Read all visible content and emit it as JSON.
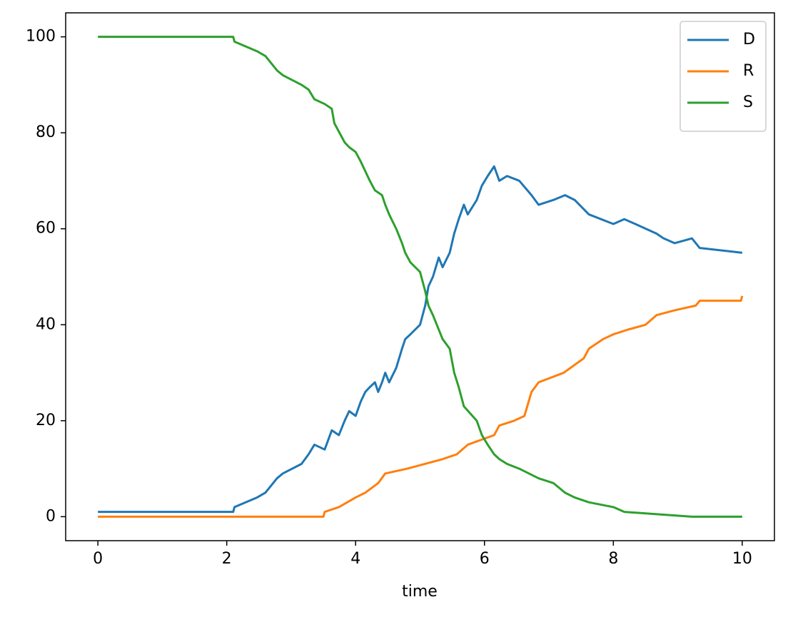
{
  "chart_data": {
    "type": "line",
    "xlabel": "time",
    "xlim": [
      -0.5,
      10.5
    ],
    "ylim": [
      -5,
      105
    ],
    "xticks": [
      0,
      2,
      4,
      6,
      8,
      10
    ],
    "yticks": [
      0,
      20,
      40,
      60,
      80,
      100
    ],
    "legend": "upper right",
    "series": [
      {
        "name": "D",
        "color": "#1f77b4",
        "x": [
          0,
          2.1,
          2.12,
          2.47,
          2.6,
          2.78,
          2.87,
          3.16,
          3.27,
          3.36,
          3.52,
          3.63,
          3.74,
          3.83,
          3.9,
          4.0,
          4.08,
          4.15,
          4.22,
          4.3,
          4.35,
          4.41,
          4.46,
          4.52,
          4.63,
          4.72,
          4.77,
          4.85,
          5.0,
          5.08,
          5.13,
          5.2,
          5.29,
          5.35,
          5.46,
          5.53,
          5.6,
          5.68,
          5.74,
          5.88,
          5.96,
          6.05,
          6.15,
          6.23,
          6.35,
          6.54,
          6.73,
          6.84,
          7.07,
          7.25,
          7.4,
          7.62,
          8.0,
          8.17,
          8.34,
          8.67,
          8.78,
          8.95,
          9.22,
          9.34,
          10
        ],
        "values": [
          1,
          1,
          2,
          4,
          5,
          8,
          9,
          11,
          13,
          15,
          14,
          18,
          17,
          20,
          22,
          21,
          24,
          26,
          27,
          28,
          26,
          28,
          30,
          28,
          31,
          35,
          37,
          38,
          40,
          44,
          48,
          50,
          54,
          52,
          55,
          59,
          62,
          65,
          63,
          66,
          69,
          71,
          73,
          70,
          71,
          70,
          67,
          65,
          66,
          67,
          66,
          63,
          61,
          62,
          61,
          59,
          58,
          57,
          58,
          56,
          55
        ]
      },
      {
        "name": "R",
        "color": "#ff7f0e",
        "x": [
          0,
          3.5,
          3.52,
          3.74,
          4.0,
          4.15,
          4.35,
          4.46,
          4.8,
          5.35,
          5.57,
          5.74,
          6.15,
          6.23,
          6.46,
          6.62,
          6.73,
          6.84,
          7.23,
          7.54,
          7.62,
          7.84,
          8.0,
          8.23,
          8.5,
          8.67,
          8.95,
          9.28,
          9.34,
          9.98,
          10
        ],
        "values": [
          0,
          0,
          1,
          2,
          4,
          5,
          7,
          9,
          10,
          12,
          13,
          15,
          17,
          19,
          20,
          21,
          26,
          28,
          30,
          33,
          35,
          37,
          38,
          39,
          40,
          42,
          43,
          44,
          45,
          45,
          46
        ]
      },
      {
        "name": "S",
        "color": "#2ca02c",
        "x": [
          0,
          2.1,
          2.12,
          2.47,
          2.6,
          2.78,
          2.87,
          3.16,
          3.27,
          3.36,
          3.52,
          3.63,
          3.67,
          3.83,
          3.9,
          4.0,
          4.08,
          4.15,
          4.22,
          4.3,
          4.41,
          4.46,
          4.52,
          4.63,
          4.72,
          4.77,
          4.85,
          5.0,
          5.08,
          5.13,
          5.2,
          5.29,
          5.35,
          5.46,
          5.53,
          5.6,
          5.68,
          5.88,
          5.96,
          6.05,
          6.15,
          6.23,
          6.35,
          6.54,
          6.84,
          7.07,
          7.25,
          7.4,
          7.62,
          8.0,
          8.17,
          9.22,
          10
        ],
        "values": [
          100,
          100,
          99,
          97,
          96,
          93,
          92,
          90,
          89,
          87,
          86,
          85,
          82,
          78,
          77,
          76,
          74,
          72,
          70,
          68,
          67,
          65,
          63,
          60,
          57,
          55,
          53,
          51,
          47,
          44,
          42,
          39,
          37,
          35,
          30,
          27,
          23,
          20,
          17,
          15,
          13,
          12,
          11,
          10,
          8,
          7,
          5,
          4,
          3,
          2,
          1,
          0,
          0
        ]
      }
    ]
  }
}
